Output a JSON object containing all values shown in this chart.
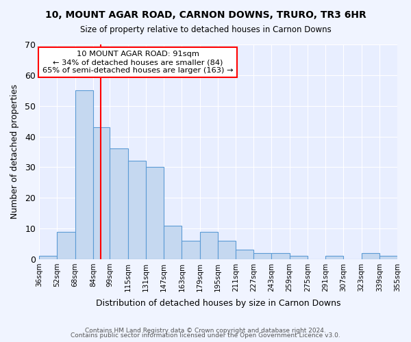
{
  "title": "10, MOUNT AGAR ROAD, CARNON DOWNS, TRURO, TR3 6HR",
  "subtitle": "Size of property relative to detached houses in Carnon Downs",
  "xlabel": "Distribution of detached houses by size in Carnon Downs",
  "ylabel": "Number of detached properties",
  "bar_color": "#c5d8f0",
  "bar_edge_color": "#5b9bd5",
  "background_color": "#e8eeff",
  "grid_color": "#ffffff",
  "bins": [
    36,
    52,
    68,
    84,
    99,
    115,
    131,
    147,
    163,
    179,
    195,
    211,
    227,
    243,
    259,
    275,
    291,
    307,
    323,
    339,
    355
  ],
  "bin_labels": [
    "36sqm",
    "52sqm",
    "68sqm",
    "84sqm",
    "99sqm",
    "115sqm",
    "131sqm",
    "147sqm",
    "163sqm",
    "179sqm",
    "195sqm",
    "211sqm",
    "227sqm",
    "243sqm",
    "259sqm",
    "275sqm",
    "291sqm",
    "307sqm",
    "323sqm",
    "339sqm",
    "355sqm"
  ],
  "values": [
    1,
    9,
    55,
    43,
    36,
    32,
    30,
    11,
    6,
    9,
    6,
    3,
    2,
    2,
    1,
    0,
    1,
    0,
    2,
    1
  ],
  "property_line_x": 91,
  "property_label": "10 MOUNT AGAR ROAD: 91sqm",
  "annotation_line1": "← 34% of detached houses are smaller (84)",
  "annotation_line2": "65% of semi-detached houses are larger (163) →",
  "ylim": [
    0,
    70
  ],
  "yticks": [
    0,
    10,
    20,
    30,
    40,
    50,
    60,
    70
  ],
  "footer1": "Contains HM Land Registry data © Crown copyright and database right 2024.",
  "footer2": "Contains public sector information licensed under the Open Government Licence v3.0."
}
